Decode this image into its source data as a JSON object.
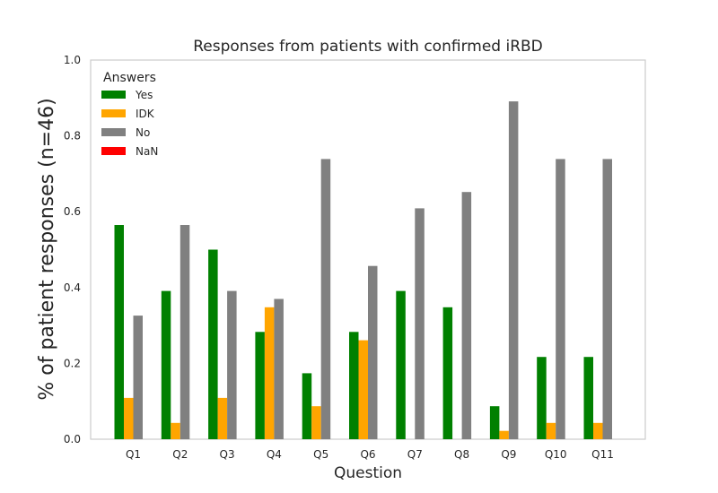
{
  "chart_data": {
    "type": "bar",
    "title": "Responses from patients with confirmed iRBD",
    "xlabel": "Question",
    "ylabel": "% of patient responses (n=46)",
    "categories": [
      "Q1",
      "Q2",
      "Q3",
      "Q4",
      "Q5",
      "Q6",
      "Q7",
      "Q8",
      "Q9",
      "Q10",
      "Q11"
    ],
    "ylim": [
      0,
      1.0
    ],
    "yticks": [
      "0.0",
      "0.2",
      "0.4",
      "0.6",
      "0.8",
      "1.0"
    ],
    "grid": false,
    "legend": {
      "title": "Answers",
      "placement": "top-left"
    },
    "series": [
      {
        "name": "Yes",
        "color": "#008000",
        "values": [
          0.565,
          0.391,
          0.5,
          0.283,
          0.174,
          0.283,
          0.391,
          0.348,
          0.087,
          0.217,
          0.217
        ]
      },
      {
        "name": "IDK",
        "color": "#ffa500",
        "values": [
          0.109,
          0.043,
          0.109,
          0.348,
          0.087,
          0.261,
          0.0,
          0.0,
          0.022,
          0.043,
          0.043
        ]
      },
      {
        "name": "No",
        "color": "#808080",
        "values": [
          0.326,
          0.565,
          0.391,
          0.37,
          0.739,
          0.457,
          0.609,
          0.652,
          0.891,
          0.739,
          0.739
        ]
      },
      {
        "name": "NaN",
        "color": "#ff0000",
        "values": [
          0,
          0,
          0,
          0,
          0,
          0,
          0,
          0,
          0,
          0,
          0
        ]
      }
    ]
  }
}
